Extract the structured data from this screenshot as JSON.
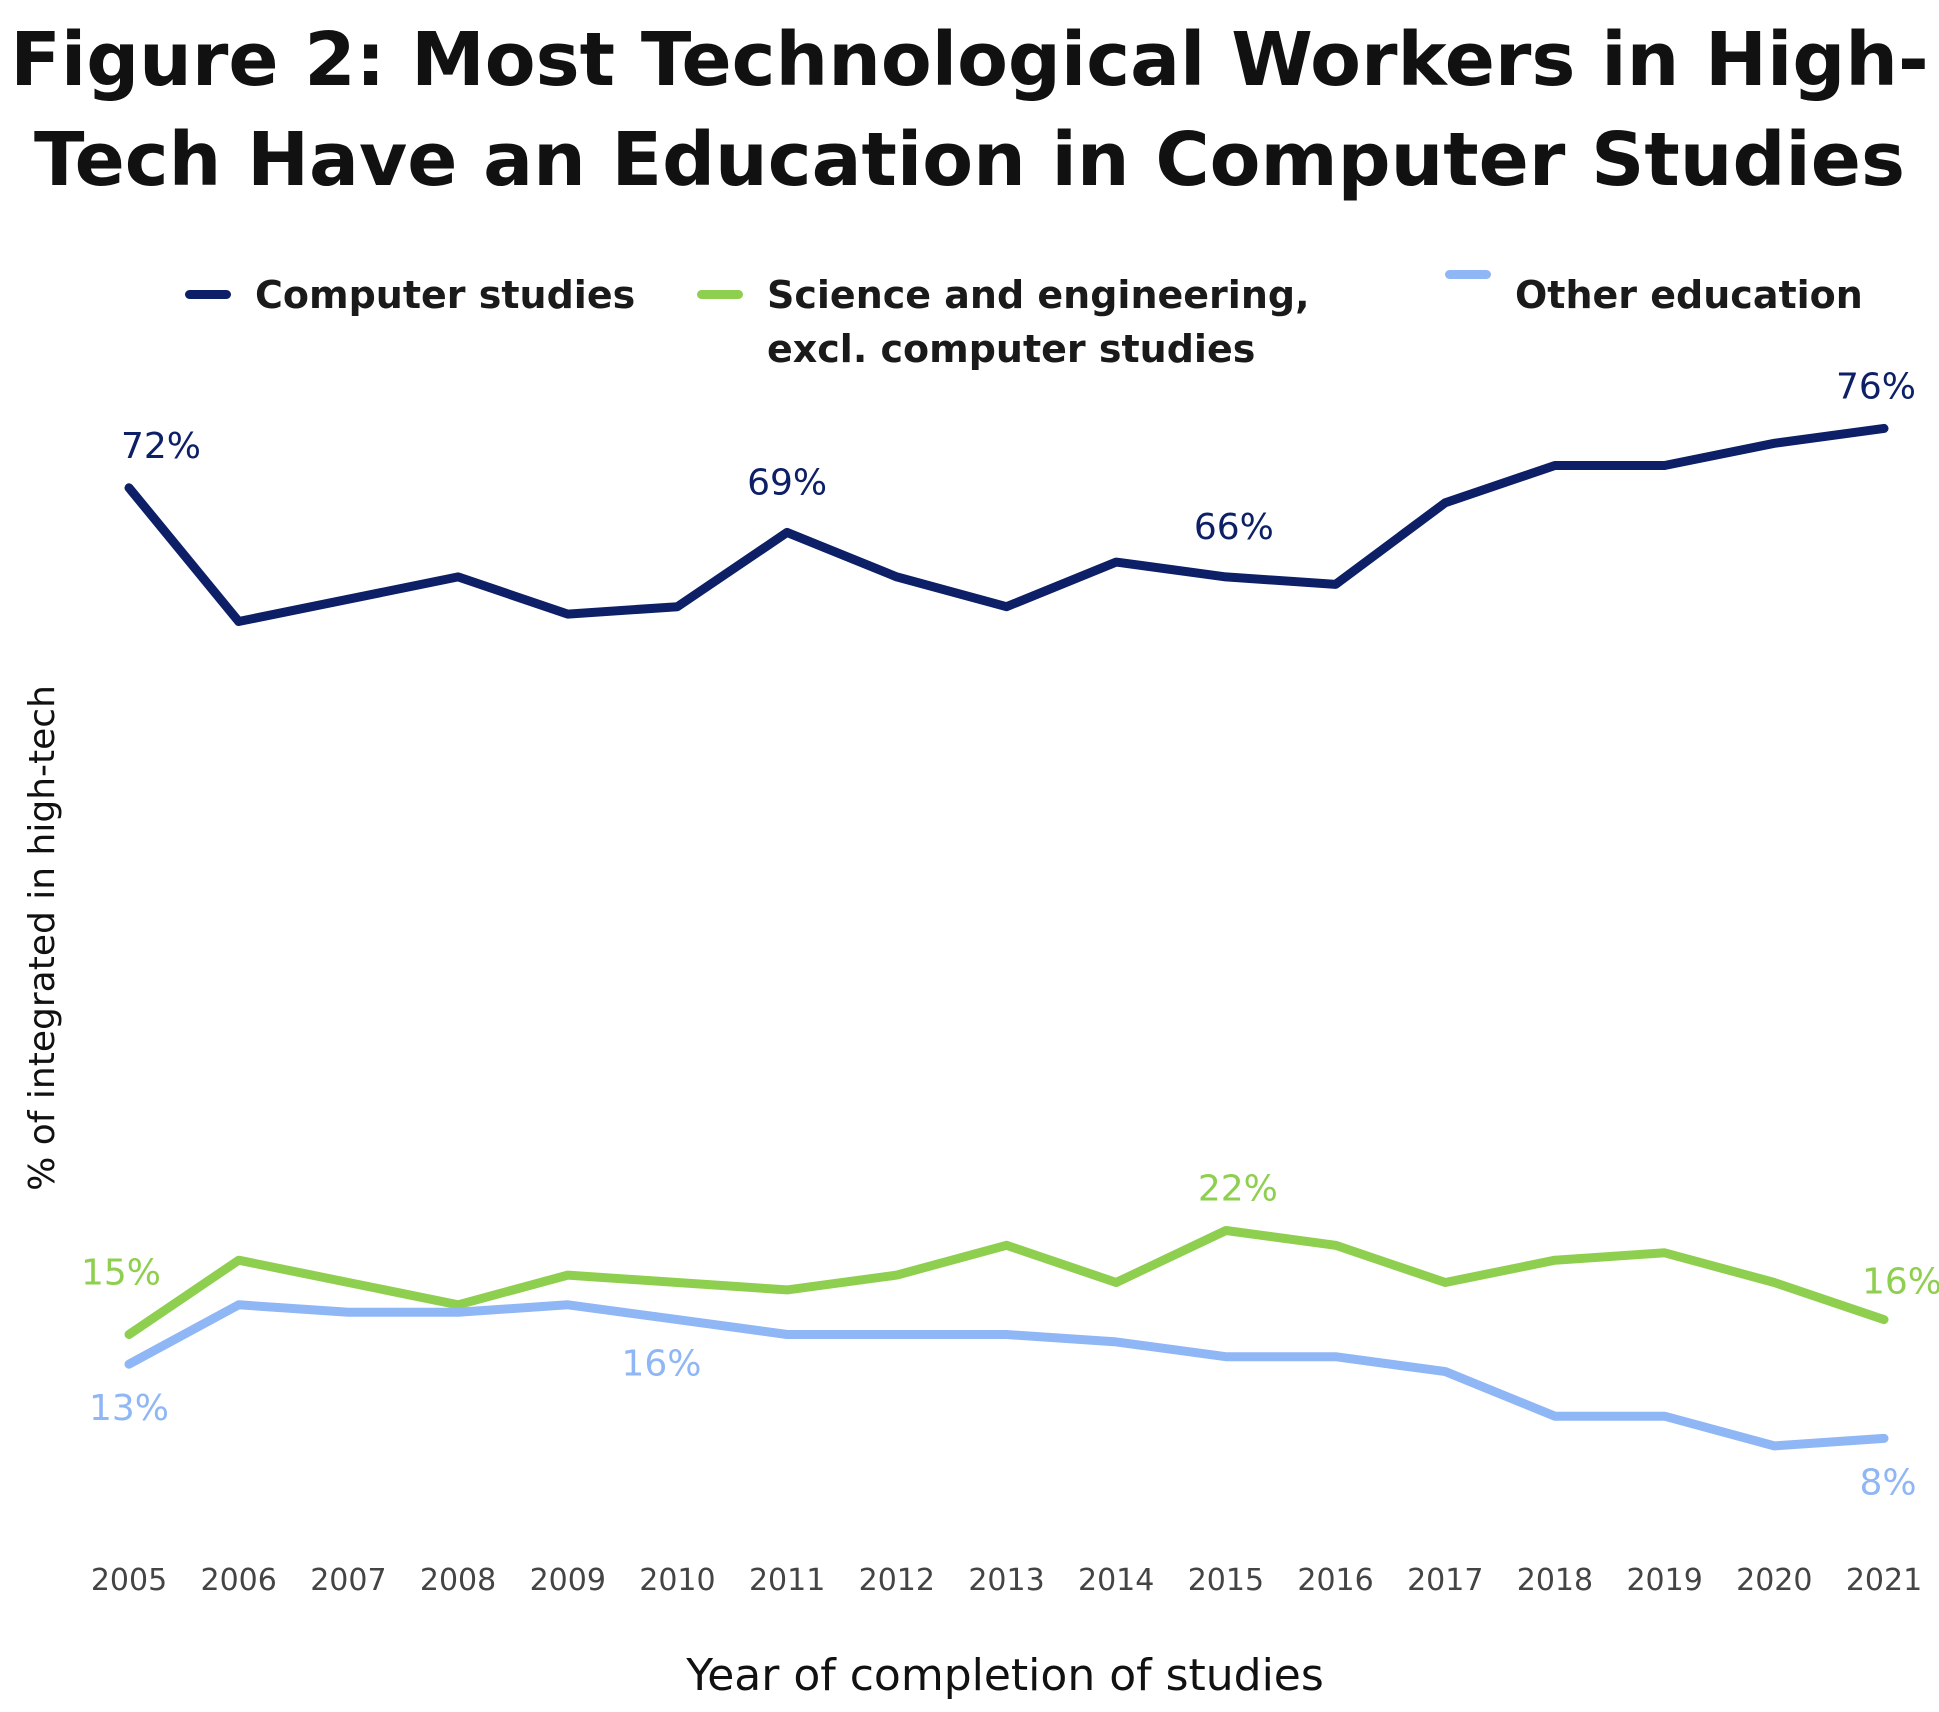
{
  "chart_data": {
    "type": "line",
    "title": [
      "Figure 2: Most Technological Workers in High-",
      "Tech Have an Education in Computer Studies"
    ],
    "xlabel": "Year of completion of studies",
    "ylabel": "% of integrated in high-tech",
    "x": [
      "2005",
      "2006",
      "2007",
      "2008",
      "2009",
      "2010",
      "2011",
      "2012",
      "2013",
      "2014",
      "2015",
      "2016",
      "2017",
      "2018",
      "2019",
      "2020",
      "2021"
    ],
    "ylim": [
      5,
      80
    ],
    "grid": false,
    "legend_position": "top",
    "series": [
      {
        "name": "Computer studies",
        "color": "#0d1f66",
        "values": [
          72,
          63,
          64.5,
          66,
          63.5,
          64,
          69,
          66,
          64,
          67,
          66,
          65.5,
          71,
          73.5,
          73.5,
          75,
          76
        ],
        "labels": [
          {
            "index": 0,
            "text": "72%"
          },
          {
            "index": 6,
            "text": "69%"
          },
          {
            "index": 10,
            "text": "66%"
          },
          {
            "index": 16,
            "text": "76%"
          }
        ]
      },
      {
        "name": "Science and engineering, excl. computer studies",
        "color": "#8fcf4f",
        "values": [
          15,
          20,
          18.5,
          17,
          19,
          18.5,
          18,
          19,
          21,
          18.5,
          22,
          21,
          18.5,
          20,
          20.5,
          18.5,
          16
        ],
        "labels": [
          {
            "index": 0,
            "text": "15%"
          },
          {
            "index": 10,
            "text": "22%"
          },
          {
            "index": 16,
            "text": "16%"
          }
        ]
      },
      {
        "name": "Other education",
        "color": "#8fb6f5",
        "values": [
          13,
          17,
          16.5,
          16.5,
          17,
          16,
          15,
          15,
          15,
          14.5,
          13.5,
          13.5,
          12.5,
          9.5,
          9.5,
          7.5,
          8
        ],
        "labels": [
          {
            "index": 0,
            "text": "13%"
          },
          {
            "index": 5,
            "text": "16%"
          },
          {
            "index": 16,
            "text": "8%"
          }
        ]
      }
    ]
  }
}
